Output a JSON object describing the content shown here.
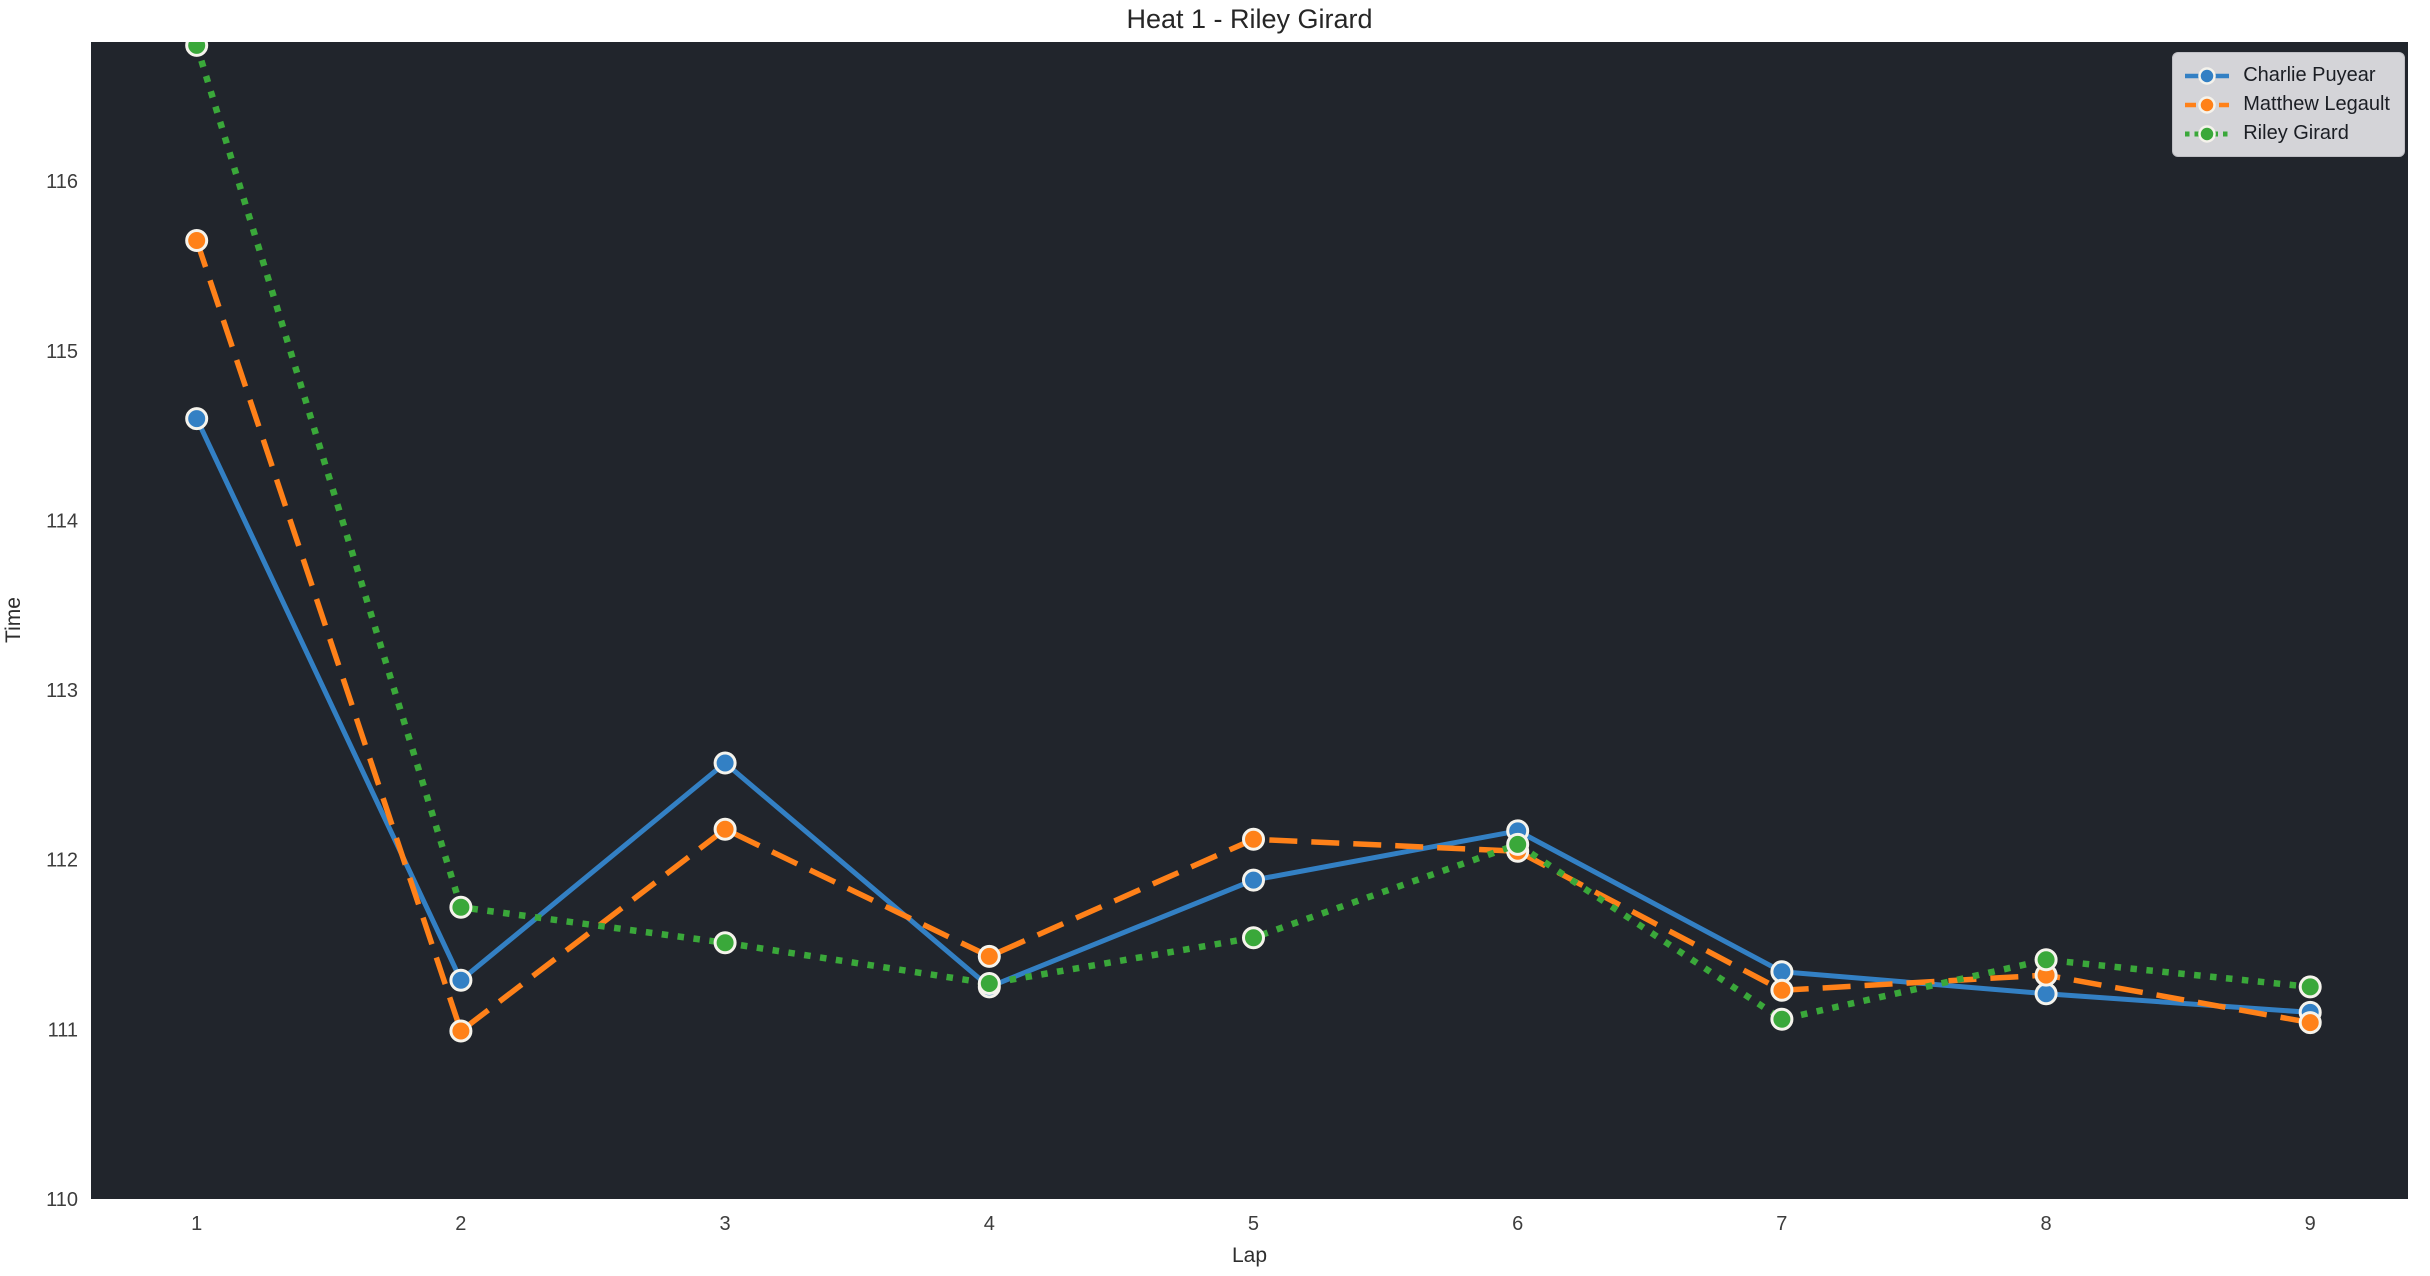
{
  "title": "Heat 1 - Riley Girard",
  "chart_data": {
    "type": "line",
    "title": "Heat 1 - Riley Girard",
    "xlabel": "Lap",
    "ylabel": "Time",
    "x": [
      1,
      2,
      3,
      4,
      5,
      6,
      7,
      8,
      9
    ],
    "xticks": [
      1,
      2,
      3,
      4,
      5,
      6,
      7,
      8,
      9
    ],
    "yticks": [
      110,
      111,
      112,
      113,
      114,
      115,
      116
    ],
    "xlim": [
      0.6,
      9.37
    ],
    "ylim": [
      110,
      116.82
    ],
    "grid": false,
    "legend_position": "upper right",
    "plot_bg": "#21252c",
    "fig_bg": "#ffffff",
    "marker": "circle",
    "marker_edge_color": "#f5f3ec",
    "series": [
      {
        "name": "Charlie Puyear",
        "color": "#3380c4",
        "line_style": "solid",
        "values": [
          114.6,
          111.29,
          112.57,
          111.25,
          111.88,
          112.17,
          111.34,
          111.21,
          111.1
        ]
      },
      {
        "name": "Matthew Legault",
        "color": "#ff8119",
        "line_style": "dashed",
        "values": [
          115.65,
          110.99,
          112.18,
          111.43,
          112.12,
          112.05,
          111.23,
          111.32,
          111.04
        ]
      },
      {
        "name": "Riley Girard",
        "color": "#3aa83a",
        "line_style": "dotted",
        "values": [
          116.8,
          111.72,
          111.51,
          111.27,
          111.54,
          112.09,
          111.06,
          111.41,
          111.25
        ]
      }
    ]
  }
}
